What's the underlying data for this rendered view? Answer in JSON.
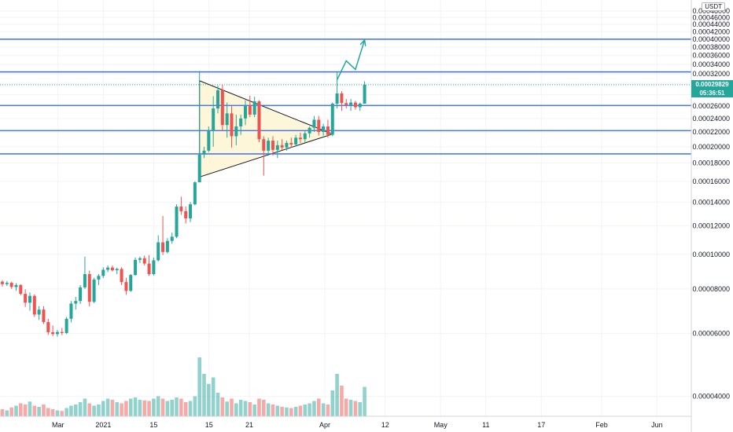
{
  "colors": {
    "up": "#26a69a",
    "down": "#ef5350",
    "level": "#2962ff",
    "arrow": "#26a69a",
    "triangle_fill": "#fdf6d8",
    "grid": "#f0f3fa",
    "axis_border": "#d1d4dc"
  },
  "header": {
    "currency": "USDT"
  },
  "last_price": {
    "value": "0.00029829",
    "countdown": "05:36:51"
  },
  "chart_data": {
    "type": "candlestick",
    "x_tick_labels": [
      "2021",
      "11",
      "21",
      "Feb",
      "15",
      "Mar",
      "15",
      "Apr",
      "12",
      "May",
      "17",
      "Jun"
    ],
    "y_tick_labels": [
      "0.00048000",
      "0.00046000",
      "0.00044000",
      "0.00042000",
      "0.00040000",
      "0.00038000",
      "0.00036000",
      "0.00034000",
      "0.00032000",
      "0.00030000",
      "0.00028000",
      "0.00026000",
      "0.00024000",
      "0.00022000",
      "0.00020000",
      "0.00018000",
      "0.00016000",
      "0.00014000",
      "0.00012000",
      "0.00010000",
      "0.00008000",
      "0.00006000",
      "0.00004000"
    ],
    "y_scale": "log",
    "ylim": [
      3.52e-05,
      0.000515
    ],
    "horizontal_levels": [
      0.0004,
      0.000324,
      0.000261,
      0.000222,
      0.000191
    ],
    "triangle": [
      [
        43,
        0.000306
      ],
      [
        43,
        0.0001646
      ],
      [
        72,
        0.000217
      ]
    ],
    "projection": [
      [
        73,
        0.000308
      ],
      [
        75,
        0.000348
      ],
      [
        77,
        0.000329
      ],
      [
        79,
        0.000398
      ]
    ],
    "candles": [
      [
        0,
        8.38e-05,
        8.46e-05,
        8.12e-05,
        8.25e-05
      ],
      [
        1,
        8.25e-05,
        8.42e-05,
        8.15e-05,
        8.32e-05
      ],
      [
        2,
        8.32e-05,
        8.38e-05,
        8e-05,
        8.1e-05
      ],
      [
        3,
        8.1e-05,
        8.3e-05,
        7.9e-05,
        8.2e-05
      ],
      [
        4,
        8.2e-05,
        8.25e-05,
        7.68e-05,
        7.75e-05
      ],
      [
        5,
        7.75e-05,
        7.98e-05,
        7.12e-05,
        7.32e-05
      ],
      [
        6,
        7.32e-05,
        7.82e-05,
        6.95e-05,
        7.65e-05
      ],
      [
        7,
        7.65e-05,
        7.72e-05,
        6.68e-05,
        6.78e-05
      ],
      [
        8,
        6.78e-05,
        7.16e-05,
        6.55e-05,
        7e-05
      ],
      [
        9,
        7e-05,
        7.16e-05,
        6.38e-05,
        6.46e-05
      ],
      [
        10,
        6.46e-05,
        6.6e-05,
        5.95e-05,
        6.05e-05
      ],
      [
        11,
        6.05e-05,
        6.32e-05,
        5.9e-05,
        5.98e-05
      ],
      [
        12,
        5.98e-05,
        6.14e-05,
        5.88e-05,
        6.06e-05
      ],
      [
        13,
        6.06e-05,
        6.22e-05,
        5.94e-05,
        6.02e-05
      ],
      [
        14,
        6.02e-05,
        6.68e-05,
        5.98e-05,
        6.6e-05
      ],
      [
        15,
        6.6e-05,
        7.4e-05,
        6.45e-05,
        7.28e-05
      ],
      [
        16,
        7.28e-05,
        7.6e-05,
        7e-05,
        7.4e-05
      ],
      [
        17,
        7.4e-05,
        8.2e-05,
        7.26e-05,
        8.08e-05
      ],
      [
        18,
        8.08e-05,
        9.85e-05,
        8e-05,
        8.8e-05
      ],
      [
        19,
        8.8e-05,
        9e-05,
        7.15e-05,
        7.36e-05
      ],
      [
        20,
        7.36e-05,
        8.6e-05,
        7.3e-05,
        8.5e-05
      ],
      [
        21,
        8.5e-05,
        8.8e-05,
        8.2e-05,
        8.7e-05
      ],
      [
        22,
        8.7e-05,
        9.2e-05,
        8.58e-05,
        9.05e-05
      ],
      [
        23,
        9.05e-05,
        9.3e-05,
        8.92e-05,
        9.18e-05
      ],
      [
        24,
        9.18e-05,
        9.3e-05,
        8.95e-05,
        9.02e-05
      ],
      [
        25,
        9.02e-05,
        9.18e-05,
        8.8e-05,
        9.1e-05
      ],
      [
        26,
        9.1e-05,
        9.2e-05,
        8.2e-05,
        8.36e-05
      ],
      [
        27,
        8.36e-05,
        8.6e-05,
        7.7e-05,
        7.9e-05
      ],
      [
        28,
        7.9e-05,
        8.8e-05,
        7.85e-05,
        8.75e-05
      ],
      [
        29,
        8.75e-05,
        9.8e-05,
        8.72e-05,
        9.65e-05
      ],
      [
        30,
        9.65e-05,
        9.85e-05,
        9.45e-05,
        9.75e-05
      ],
      [
        31,
        9.75e-05,
        9.92e-05,
        9.3e-05,
        9.42e-05
      ],
      [
        32,
        9.42e-05,
        9.95e-05,
        8.7e-05,
        8.8e-05
      ],
      [
        33,
        8.8e-05,
        9.8e-05,
        8.72e-05,
        9.62e-05
      ],
      [
        34,
        9.62e-05,
        0.000113,
        9.55e-05,
        0.000108
      ],
      [
        35,
        0.000108,
        0.000128,
        9.95e-05,
        0.0001015
      ],
      [
        36,
        0.0001015,
        0.000111,
        0.0001005,
        0.000109
      ],
      [
        37,
        0.000109,
        0.000115,
        0.000107,
        0.000112
      ],
      [
        38,
        0.000112,
        0.000138,
        0.000111,
        0.000136
      ],
      [
        39,
        0.000136,
        0.000145,
        0.000129,
        0.000132
      ],
      [
        40,
        0.000132,
        0.000136,
        0.000122,
        0.000126
      ],
      [
        41,
        0.000126,
        0.00014,
        0.000123,
        0.000138
      ],
      [
        42,
        0.000138,
        0.00016,
        0.000137,
        0.000159
      ],
      [
        43,
        0.000159,
        0.000326,
        0.000159,
        0.00019
      ],
      [
        44,
        0.00019,
        0.0002,
        0.000186,
        0.000195
      ],
      [
        45,
        0.000195,
        0.000228,
        0.000193,
        0.000222
      ],
      [
        46,
        0.000222,
        0.000277,
        0.0002,
        0.000256
      ],
      [
        47,
        0.000256,
        0.000297,
        0.000248,
        0.000288
      ],
      [
        48,
        0.000288,
        0.000298,
        0.000222,
        0.00023
      ],
      [
        49,
        0.00023,
        0.000266,
        0.000212,
        0.000248
      ],
      [
        50,
        0.000248,
        0.00026,
        0.000199,
        0.000214
      ],
      [
        51,
        0.000214,
        0.000246,
        0.000202,
        0.000228
      ],
      [
        52,
        0.000228,
        0.000246,
        0.000216,
        0.00024
      ],
      [
        53,
        0.00024,
        0.00027,
        0.00023,
        0.000261
      ],
      [
        54,
        0.000261,
        0.000278,
        0.000242,
        0.000246
      ],
      [
        55,
        0.000246,
        0.000276,
        0.000242,
        0.000268
      ],
      [
        56,
        0.000268,
        0.00027,
        0.000206,
        0.00021
      ],
      [
        57,
        0.00021,
        0.000214,
        0.000166,
        0.000195
      ],
      [
        58,
        0.000195,
        0.000212,
        0.00019,
        0.000208
      ],
      [
        59,
        0.000208,
        0.000214,
        0.000189,
        0.000196
      ],
      [
        60,
        0.000196,
        0.000208,
        0.000186,
        0.000202
      ],
      [
        61,
        0.000202,
        0.00021,
        0.000196,
        0.000199
      ],
      [
        62,
        0.000199,
        0.000208,
        0.000195,
        0.000205
      ],
      [
        63,
        0.000205,
        0.000212,
        0.000199,
        0.000203
      ],
      [
        64,
        0.000203,
        0.000216,
        0.0002,
        0.000212
      ],
      [
        65,
        0.000212,
        0.000219,
        0.000205,
        0.00021
      ],
      [
        66,
        0.00021,
        0.000222,
        0.000206,
        0.000218
      ],
      [
        67,
        0.000218,
        0.000228,
        0.000212,
        0.000226
      ],
      [
        68,
        0.000226,
        0.000244,
        0.00022,
        0.000238
      ],
      [
        69,
        0.000238,
        0.000244,
        0.000215,
        0.00022
      ],
      [
        70,
        0.00022,
        0.000232,
        0.000215,
        0.000228
      ],
      [
        71,
        0.000228,
        0.000238,
        0.000212,
        0.000216
      ],
      [
        72,
        0.000216,
        0.000266,
        0.000214,
        0.000264
      ],
      [
        73,
        0.000264,
        0.000323,
        0.000256,
        0.000282
      ],
      [
        74,
        0.000282,
        0.000286,
        0.000252,
        0.000265
      ],
      [
        75,
        0.000265,
        0.000272,
        0.000256,
        0.000262
      ],
      [
        76,
        0.000262,
        0.000272,
        0.000252,
        0.000266
      ],
      [
        77,
        0.000266,
        0.000269,
        0.000254,
        0.000258
      ],
      [
        78,
        0.000258,
        0.000266,
        0.000252,
        0.000264
      ],
      [
        79,
        0.000264,
        0.000305,
        0.000264,
        0.0002983
      ]
    ],
    "volume_relative": [
      0.12,
      0.1,
      0.15,
      0.18,
      0.22,
      0.2,
      0.25,
      0.18,
      0.16,
      0.2,
      0.14,
      0.12,
      0.1,
      0.09,
      0.14,
      0.18,
      0.2,
      0.24,
      0.3,
      0.22,
      0.18,
      0.2,
      0.26,
      0.3,
      0.28,
      0.24,
      0.22,
      0.26,
      0.3,
      0.32,
      0.28,
      0.27,
      0.26,
      0.3,
      0.34,
      0.3,
      0.26,
      0.28,
      0.32,
      0.3,
      0.24,
      0.26,
      0.34,
      1.0,
      0.72,
      0.55,
      0.66,
      0.4,
      0.32,
      0.25,
      0.3,
      0.22,
      0.28,
      0.26,
      0.24,
      0.2,
      0.3,
      0.28,
      0.22,
      0.2,
      0.18,
      0.16,
      0.15,
      0.14,
      0.16,
      0.18,
      0.2,
      0.22,
      0.26,
      0.3,
      0.22,
      0.2,
      0.44,
      0.72,
      0.52,
      0.3,
      0.28,
      0.26,
      0.24,
      0.5
    ],
    "x_axis_label_index": {
      "2021": 12,
      "11": 21,
      "21": 31,
      "Feb": 42,
      "15": 50,
      "Mar": 65,
      "15b": 77,
      "Apr": 88,
      "12": 97,
      "May": 108,
      "17": 120,
      "Jun": 131
    }
  }
}
